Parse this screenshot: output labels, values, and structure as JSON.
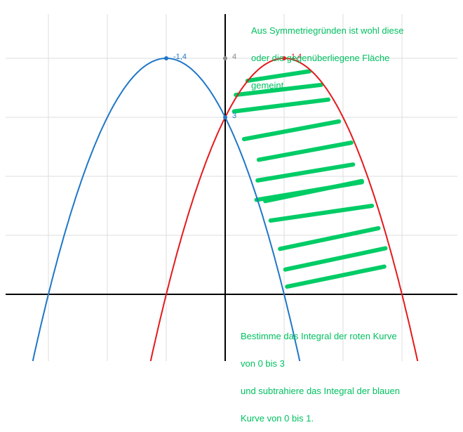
{
  "chart_data": {
    "type": "line",
    "title": "",
    "xlabel": "",
    "ylabel": "",
    "xlim": [
      -3.8,
      4.0
    ],
    "ylim": [
      -1.0,
      4.8
    ],
    "grid": true,
    "grid_x": [
      -3,
      -2,
      -1,
      0,
      1,
      2,
      3
    ],
    "grid_y": [
      1,
      2,
      3,
      4
    ],
    "colors": {
      "blue": "#1f77c8",
      "red": "#e41a1c",
      "hatch": "#00cc66",
      "note": "#00c060",
      "grid": "#dddddd",
      "axis": "#000000"
    },
    "series": [
      {
        "name": "",
        "color": "#1f77c8",
        "formula": "-(x+1)^2+4",
        "vertex": [
          -1,
          4
        ],
        "roots": [
          -3,
          1
        ]
      },
      {
        "name": "",
        "color": "#e41a1c",
        "formula": "-(x-1)^2+4",
        "vertex": [
          1,
          4
        ],
        "roots": [
          -1,
          3
        ]
      }
    ],
    "points": [
      {
        "x": -1,
        "y": 4,
        "label": "-1,4",
        "color": "#1f77c8"
      },
      {
        "x": 1,
        "y": 4,
        "label": "1,4",
        "color": "#e41a1c"
      },
      {
        "x": 0,
        "y": 3,
        "label": "3",
        "color": "#1f77c8"
      },
      {
        "x": 0,
        "y": 4,
        "label": "4",
        "color": "#888888"
      }
    ],
    "annotations": {
      "top_lines": [
        "Aus Symmetriegründen ist wohl diese",
        "oder die gegenüberliegene Fläche",
        "gemeint."
      ],
      "bottom_lines": [
        "Bestimme das Integral der roten Kurve",
        "von 0 bis 3",
        "und subtrahiere das Integral der blauen",
        "Kurve von 0 bis 1."
      ]
    },
    "hatch_strokes": [
      [
        [
          0.38,
          3.62
        ],
        [
          1.43,
          3.78
        ]
      ],
      [
        [
          0.18,
          3.38
        ],
        [
          1.63,
          3.55
        ]
      ],
      [
        [
          0.15,
          3.1
        ],
        [
          1.75,
          3.3
        ]
      ],
      [
        [
          0.32,
          2.63
        ],
        [
          1.93,
          2.93
        ]
      ],
      [
        [
          0.57,
          2.28
        ],
        [
          2.14,
          2.57
        ]
      ],
      [
        [
          0.55,
          1.93
        ],
        [
          2.17,
          2.2
        ]
      ],
      [
        [
          0.53,
          1.6
        ],
        [
          2.32,
          1.9
        ]
      ],
      [
        [
          0.68,
          1.58
        ],
        [
          2.32,
          1.92
        ]
      ],
      [
        [
          0.77,
          1.25
        ],
        [
          2.49,
          1.5
        ]
      ],
      [
        [
          0.93,
          0.77
        ],
        [
          2.6,
          1.12
        ]
      ],
      [
        [
          1.02,
          0.42
        ],
        [
          2.72,
          0.78
        ]
      ],
      [
        [
          1.05,
          0.13
        ],
        [
          2.7,
          0.47
        ]
      ]
    ]
  }
}
